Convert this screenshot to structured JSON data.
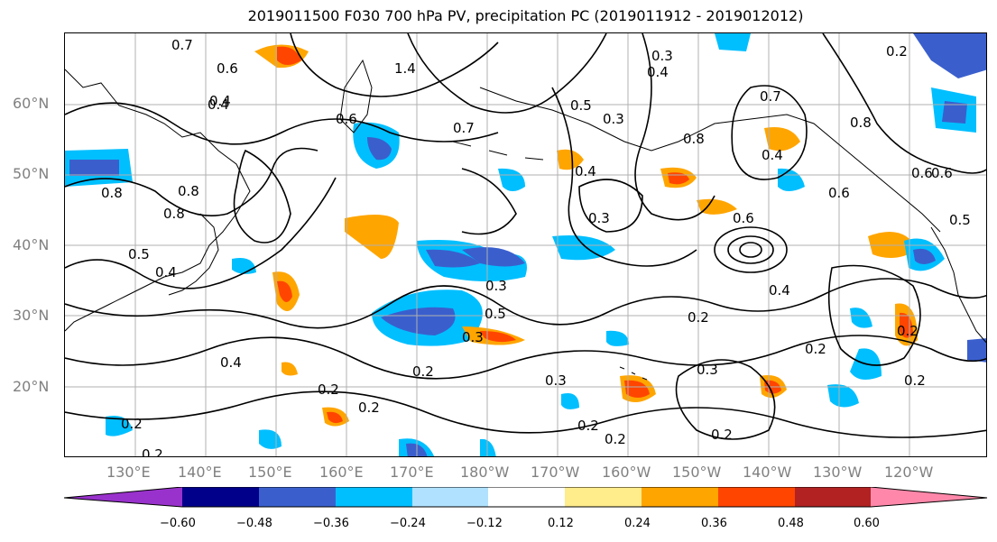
{
  "title": "2019011500 F030 700 hPa PV, precipitation PC (2019011912 - 2019012012)",
  "lat_labels": [
    "60°N",
    "50°N",
    "40°N",
    "30°N",
    "20°N"
  ],
  "lon_labels": [
    "130°E",
    "140°E",
    "150°E",
    "160°E",
    "170°E",
    "180°W",
    "170°W",
    "160°W",
    "150°W",
    "140°W",
    "130°W",
    "120°W"
  ],
  "colorbar": {
    "ticks": [
      "−0.60",
      "−0.48",
      "−0.36",
      "−0.24",
      "−0.12",
      "0.12",
      "0.24",
      "0.36",
      "0.48",
      "0.60"
    ],
    "colors": [
      "#9932CC",
      "#00008B",
      "#3A5FCD",
      "#00BFFF",
      "#B0E2FF",
      "#FFFFFF",
      "#FFEC8B",
      "#FFA500",
      "#FF4500",
      "#B22222",
      "#FF88AA"
    ]
  },
  "contour_labels": [
    "0.7",
    "0.6",
    "0.4",
    "0.8",
    "1.4",
    "0.7",
    "0.6",
    "0.3",
    "0.4",
    "0.5",
    "0.3",
    "0.4",
    "0.7",
    "0.8",
    "0.4",
    "0.8",
    "0.6",
    "0.2",
    "0.8",
    "0.8",
    "0.6",
    "0.3",
    "0.4",
    "0.6",
    "0.4",
    "0.5",
    "0.4",
    "0.3",
    "0.5",
    "0.2",
    "0.3",
    "0.2",
    "0.2",
    "0.4",
    "0.2",
    "0.3",
    "0.2",
    "0.2",
    "0.2",
    "0.3",
    "0.2",
    "0.2",
    "0.2",
    "0.2",
    "0.2",
    "0.5",
    "0.6"
  ]
}
